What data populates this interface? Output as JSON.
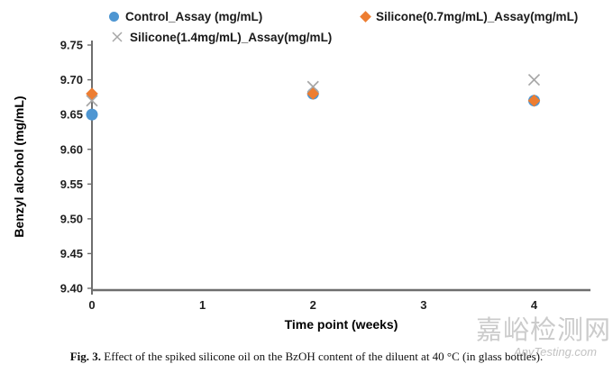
{
  "chart_data": {
    "type": "scatter",
    "x": [
      0,
      2,
      4
    ],
    "series": [
      {
        "name": "Control_Assay (mg/mL)",
        "marker": "circle",
        "color": "#4E96D2",
        "values": [
          9.65,
          9.68,
          9.67
        ]
      },
      {
        "name": "Silicone(0.7mg/mL)_Assay(mg/mL)",
        "marker": "diamond",
        "color": "#ED7D31",
        "values": [
          9.68,
          9.68,
          9.67
        ]
      },
      {
        "name": "Silicone(1.4mg/mL)_Assay(mg/mL)",
        "marker": "x",
        "color": "#A6A6A6",
        "values": [
          9.67,
          9.69,
          9.7
        ]
      }
    ],
    "title": "",
    "xlabel": "Time point (weeks)",
    "ylabel": "Benzyl alcohol (mg/mL)",
    "xlim": [
      0,
      4.51
    ],
    "xticks": [
      0,
      1,
      2,
      3,
      4
    ],
    "ylim": [
      9.4,
      9.75
    ],
    "yticks": [
      9.4,
      9.45,
      9.5,
      9.55,
      9.6,
      9.65,
      9.7,
      9.75
    ],
    "grid": false,
    "legend_position": "top"
  },
  "colors": {
    "axis": "#6E6E6E",
    "tick_label": "#1f1f1f"
  },
  "caption": {
    "fig_label": "Fig. 3.",
    "text": "Effect of the spiked silicone oil on the BzOH content of the diluent at 40 °C (in glass bottles)."
  },
  "watermark": {
    "cn": "嘉峪检测网",
    "en": "AnyTesting.com"
  }
}
